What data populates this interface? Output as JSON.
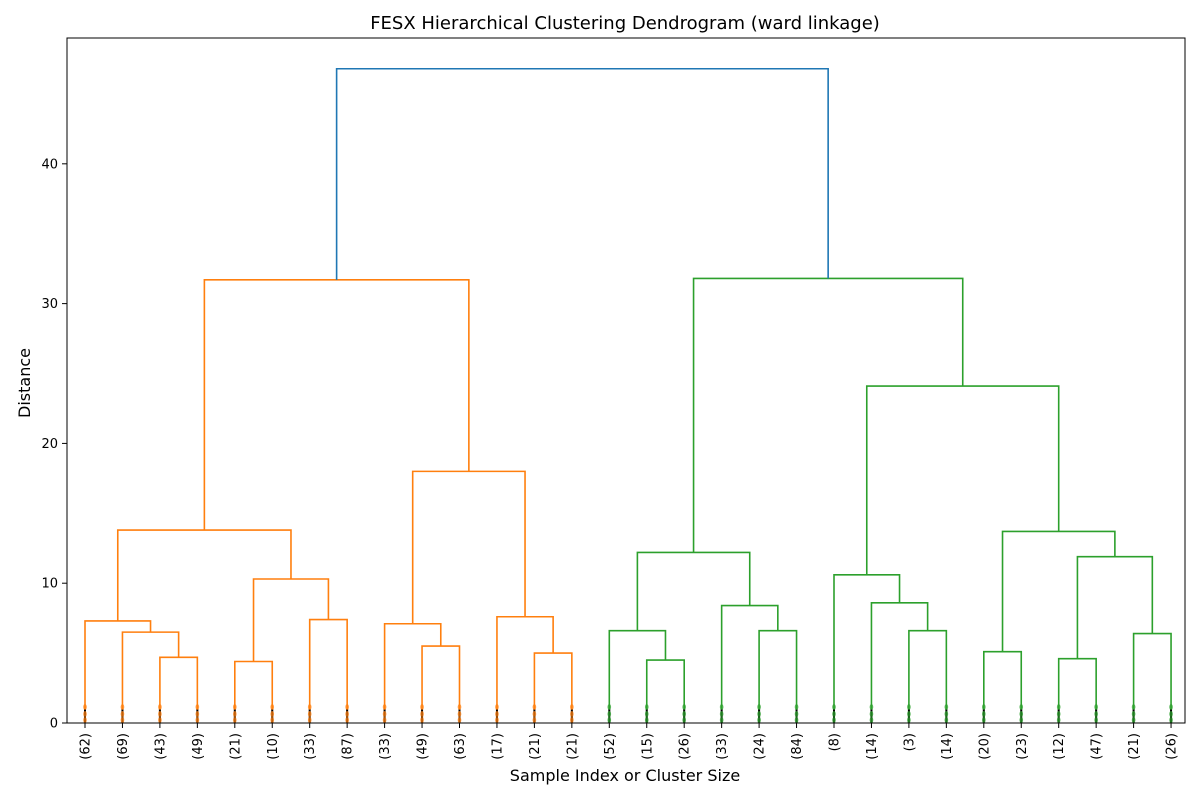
{
  "chart_data": {
    "type": "dendrogram",
    "title": "FESX Hierarchical Clustering Dendrogram (ward linkage)",
    "xlabel": "Sample Index or Cluster Size",
    "ylabel": "Distance",
    "ylim": [
      0,
      49
    ],
    "yticks": [
      0,
      10,
      20,
      30,
      40
    ],
    "grid": false,
    "colors": {
      "cluster_1": "#ff7f0e",
      "cluster_2": "#2ca02c",
      "root": "#1f77b4",
      "leaf_dots": "#d62728"
    },
    "leaves": [
      "(62)",
      "(69)",
      "(43)",
      "(49)",
      "(21)",
      "(10)",
      "(33)",
      "(87)",
      "(33)",
      "(49)",
      "(63)",
      "(17)",
      "(21)",
      "(21)",
      "(52)",
      "(15)",
      "(26)",
      "(33)",
      "(24)",
      "(84)",
      "(8)",
      "(14)",
      "(3)",
      "(14)",
      "(20)",
      "(23)",
      "(12)",
      "(47)",
      "(21)",
      "(26)"
    ],
    "merges": [
      {
        "children": [
          "L2",
          "L3"
        ],
        "height": 4.7,
        "color": "cluster_1"
      },
      {
        "children": [
          "L1",
          "N0"
        ],
        "height": 6.5,
        "color": "cluster_1"
      },
      {
        "children": [
          "L0",
          "N1"
        ],
        "height": 7.3,
        "color": "cluster_1"
      },
      {
        "children": [
          "L4",
          "L5"
        ],
        "height": 4.4,
        "color": "cluster_1"
      },
      {
        "children": [
          "L6",
          "L7"
        ],
        "height": 7.4,
        "color": "cluster_1"
      },
      {
        "children": [
          "N3",
          "N4"
        ],
        "height": 10.3,
        "color": "cluster_1"
      },
      {
        "children": [
          "N2",
          "N5"
        ],
        "height": 13.8,
        "color": "cluster_1"
      },
      {
        "children": [
          "L9",
          "L10"
        ],
        "height": 5.5,
        "color": "cluster_1"
      },
      {
        "children": [
          "L8",
          "N7"
        ],
        "height": 7.1,
        "color": "cluster_1"
      },
      {
        "children": [
          "L12",
          "L13"
        ],
        "height": 5.0,
        "color": "cluster_1"
      },
      {
        "children": [
          "L11",
          "N9"
        ],
        "height": 7.6,
        "color": "cluster_1"
      },
      {
        "children": [
          "N8",
          "N10"
        ],
        "height": 18.0,
        "color": "cluster_1"
      },
      {
        "children": [
          "N6",
          "N11"
        ],
        "height": 31.7,
        "color": "cluster_1"
      },
      {
        "children": [
          "L15",
          "L16"
        ],
        "height": 4.5,
        "color": "cluster_2"
      },
      {
        "children": [
          "L14",
          "N13"
        ],
        "height": 6.6,
        "color": "cluster_2"
      },
      {
        "children": [
          "L18",
          "L19"
        ],
        "height": 6.6,
        "color": "cluster_2"
      },
      {
        "children": [
          "L17",
          "N15"
        ],
        "height": 8.4,
        "color": "cluster_2"
      },
      {
        "children": [
          "N14",
          "N16"
        ],
        "height": 12.2,
        "color": "cluster_2"
      },
      {
        "children": [
          "L22",
          "L23"
        ],
        "height": 6.6,
        "color": "cluster_2"
      },
      {
        "children": [
          "L21",
          "N18"
        ],
        "height": 8.6,
        "color": "cluster_2"
      },
      {
        "children": [
          "L20",
          "N19"
        ],
        "height": 10.6,
        "color": "cluster_2"
      },
      {
        "children": [
          "L24",
          "L25"
        ],
        "height": 5.1,
        "color": "cluster_2"
      },
      {
        "children": [
          "L26",
          "L27"
        ],
        "height": 4.6,
        "color": "cluster_2"
      },
      {
        "children": [
          "L28",
          "L29"
        ],
        "height": 6.4,
        "color": "cluster_2"
      },
      {
        "children": [
          "N22",
          "N23"
        ],
        "height": 11.9,
        "color": "cluster_2"
      },
      {
        "children": [
          "N21",
          "N24"
        ],
        "height": 13.7,
        "color": "cluster_2"
      },
      {
        "children": [
          "N20",
          "N25"
        ],
        "height": 24.1,
        "color": "cluster_2"
      },
      {
        "children": [
          "N17",
          "N26"
        ],
        "height": 31.8,
        "color": "cluster_2"
      },
      {
        "children": [
          "N12",
          "N27"
        ],
        "height": 46.8,
        "color": "root"
      }
    ]
  }
}
